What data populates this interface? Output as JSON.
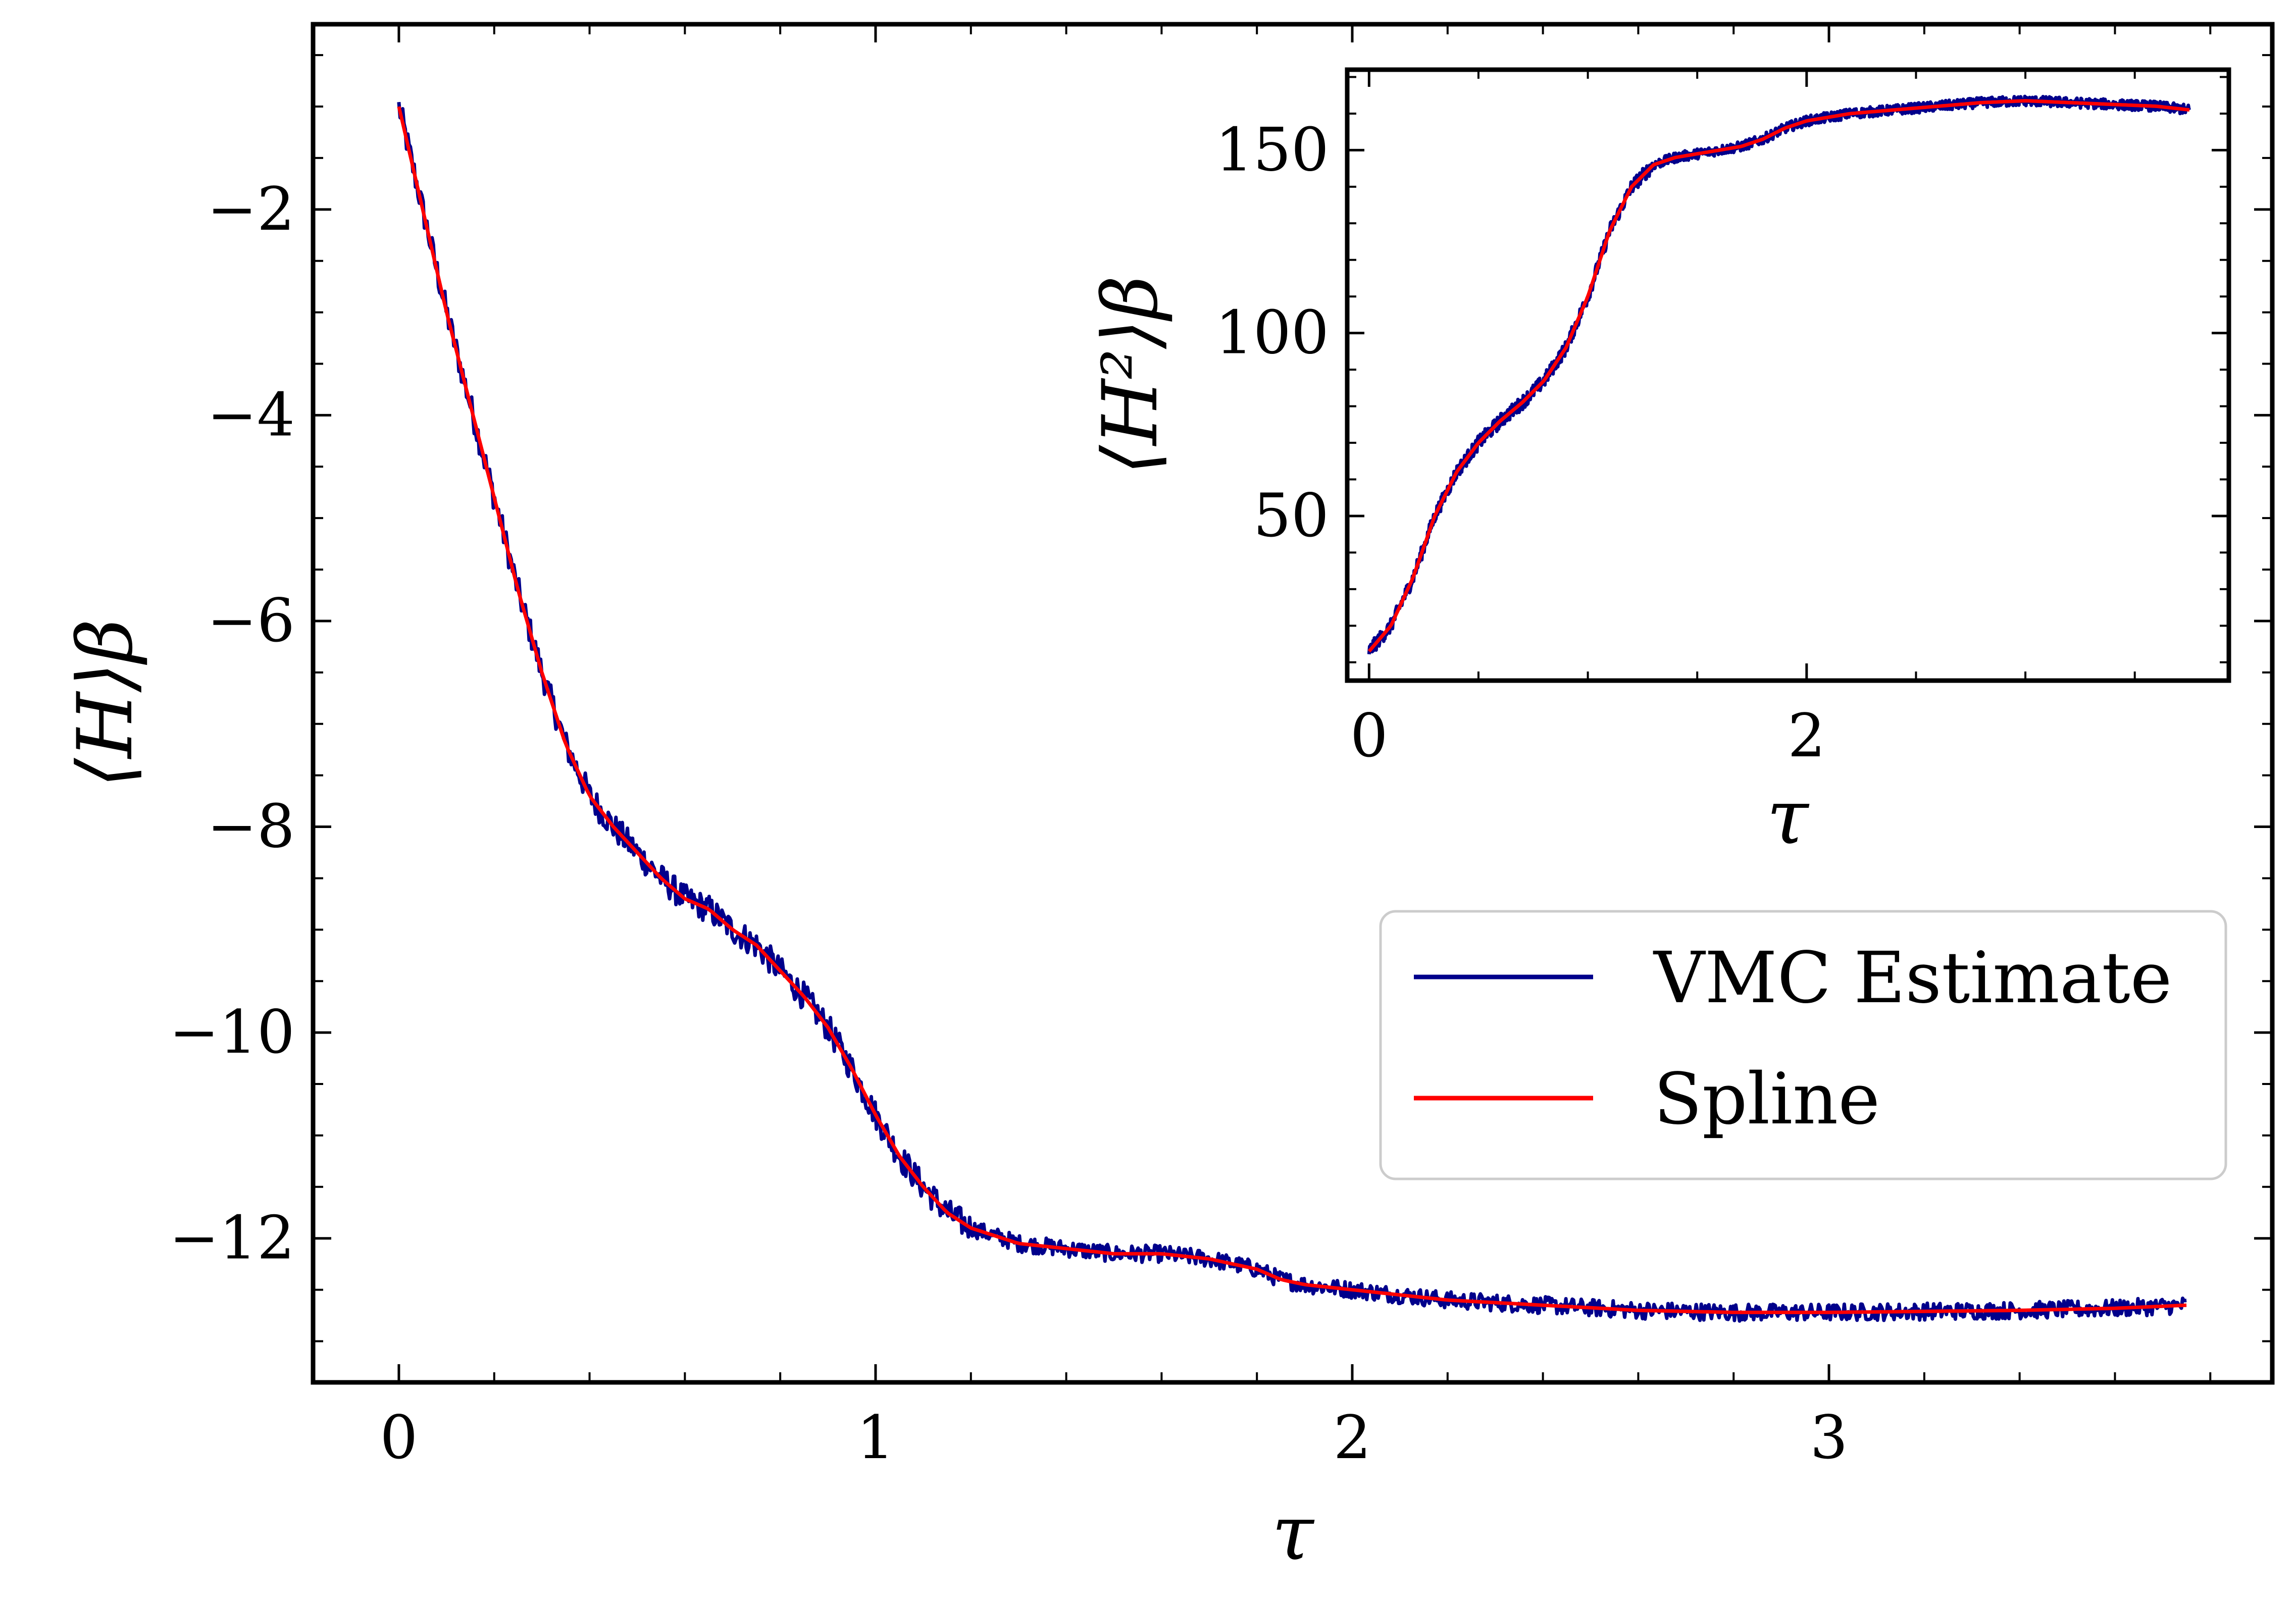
{
  "chart_data": [
    {
      "type": "line",
      "id": "main",
      "xlabel": "τ",
      "ylabel": "⟨H⟩β",
      "xlim": [
        -0.18,
        3.93
      ],
      "ylim": [
        -13.4,
        -0.2
      ],
      "xticks": [
        0,
        1,
        2,
        3
      ],
      "xtick_labels": [
        "0",
        "1",
        "2",
        "3"
      ],
      "yticks": [
        -12,
        -10,
        -8,
        -6,
        -4,
        -2
      ],
      "ytick_labels": [
        "−12",
        "−10",
        "−8",
        "−6",
        "−4",
        "−2"
      ],
      "grid": false,
      "series": [
        {
          "name": "VMC Estimate",
          "color": "#00008b",
          "noisy": true,
          "x": [
            0,
            0.05,
            0.1,
            0.15,
            0.2,
            0.25,
            0.3,
            0.35,
            0.4,
            0.45,
            0.5,
            0.55,
            0.6,
            0.65,
            0.7,
            0.75,
            0.8,
            0.85,
            0.9,
            0.95,
            1.0,
            1.05,
            1.1,
            1.15,
            1.2,
            1.3,
            1.4,
            1.5,
            1.6,
            1.7,
            1.8,
            1.85,
            1.9,
            2.0,
            2.2,
            2.4,
            2.6,
            2.8,
            3.0,
            3.2,
            3.4,
            3.6,
            3.75
          ],
          "y": [
            -1.0,
            -2.0,
            -3.0,
            -3.9,
            -4.8,
            -5.7,
            -6.5,
            -7.2,
            -7.7,
            -8.0,
            -8.25,
            -8.5,
            -8.7,
            -8.8,
            -9.0,
            -9.15,
            -9.4,
            -9.65,
            -9.95,
            -10.35,
            -10.8,
            -11.2,
            -11.5,
            -11.75,
            -11.9,
            -12.05,
            -12.1,
            -12.15,
            -12.15,
            -12.2,
            -12.3,
            -12.4,
            -12.45,
            -12.5,
            -12.6,
            -12.65,
            -12.7,
            -12.72,
            -12.72,
            -12.71,
            -12.7,
            -12.68,
            -12.65
          ]
        },
        {
          "name": "Spline",
          "color": "#ff0000",
          "noisy": false,
          "x": [
            0,
            0.05,
            0.1,
            0.15,
            0.2,
            0.25,
            0.3,
            0.35,
            0.4,
            0.45,
            0.5,
            0.55,
            0.6,
            0.65,
            0.7,
            0.75,
            0.8,
            0.85,
            0.9,
            0.95,
            1.0,
            1.05,
            1.1,
            1.15,
            1.2,
            1.3,
            1.4,
            1.5,
            1.6,
            1.7,
            1.8,
            1.85,
            1.9,
            2.0,
            2.2,
            2.4,
            2.6,
            2.8,
            3.0,
            3.2,
            3.4,
            3.6,
            3.75
          ],
          "y": [
            -1.0,
            -2.0,
            -3.0,
            -3.9,
            -4.8,
            -5.7,
            -6.5,
            -7.2,
            -7.7,
            -8.0,
            -8.25,
            -8.5,
            -8.7,
            -8.8,
            -9.0,
            -9.15,
            -9.4,
            -9.65,
            -9.95,
            -10.35,
            -10.8,
            -11.2,
            -11.5,
            -11.75,
            -11.9,
            -12.05,
            -12.1,
            -12.15,
            -12.15,
            -12.2,
            -12.3,
            -12.4,
            -12.45,
            -12.5,
            -12.6,
            -12.65,
            -12.7,
            -12.72,
            -12.72,
            -12.71,
            -12.7,
            -12.68,
            -12.65
          ]
        }
      ],
      "legend": {
        "placement": "lower-right",
        "entries": [
          "VMC Estimate",
          "Spline"
        ]
      }
    },
    {
      "type": "line",
      "id": "inset",
      "xlabel": "τ",
      "ylabel": "⟨H²⟩β",
      "xlim": [
        -0.1,
        3.93
      ],
      "ylim": [
        5,
        172
      ],
      "xticks": [
        0,
        2
      ],
      "xtick_labels": [
        "0",
        "2"
      ],
      "yticks": [
        50,
        100,
        150
      ],
      "ytick_labels": [
        "50",
        "100",
        "150"
      ],
      "grid": false,
      "series": [
        {
          "name": "VMC Estimate",
          "color": "#00008b",
          "noisy": true,
          "x": [
            0,
            0.1,
            0.2,
            0.3,
            0.4,
            0.5,
            0.6,
            0.7,
            0.8,
            0.9,
            1.0,
            1.1,
            1.2,
            1.3,
            1.4,
            1.5,
            1.6,
            1.7,
            1.8,
            1.9,
            2.0,
            2.2,
            2.4,
            2.6,
            2.8,
            3.0,
            3.2,
            3.4,
            3.6,
            3.75
          ],
          "y": [
            13,
            20,
            33,
            50,
            62,
            70,
            76,
            81,
            87,
            96,
            110,
            128,
            140,
            146,
            148,
            149,
            150,
            151,
            153,
            156,
            158,
            160,
            161,
            162,
            163,
            163.5,
            163,
            162.5,
            162,
            161
          ]
        },
        {
          "name": "Spline",
          "color": "#ff0000",
          "noisy": false,
          "x": [
            0,
            0.1,
            0.2,
            0.3,
            0.4,
            0.5,
            0.6,
            0.7,
            0.8,
            0.9,
            1.0,
            1.1,
            1.2,
            1.3,
            1.4,
            1.5,
            1.6,
            1.7,
            1.8,
            1.9,
            2.0,
            2.2,
            2.4,
            2.6,
            2.8,
            3.0,
            3.2,
            3.4,
            3.6,
            3.75
          ],
          "y": [
            13,
            20,
            33,
            50,
            62,
            70,
            76,
            81,
            87,
            96,
            110,
            128,
            140,
            146,
            148,
            149,
            150,
            151,
            153,
            156,
            158,
            160,
            161,
            162,
            163,
            163.5,
            163,
            162.5,
            162,
            161
          ]
        }
      ]
    }
  ]
}
